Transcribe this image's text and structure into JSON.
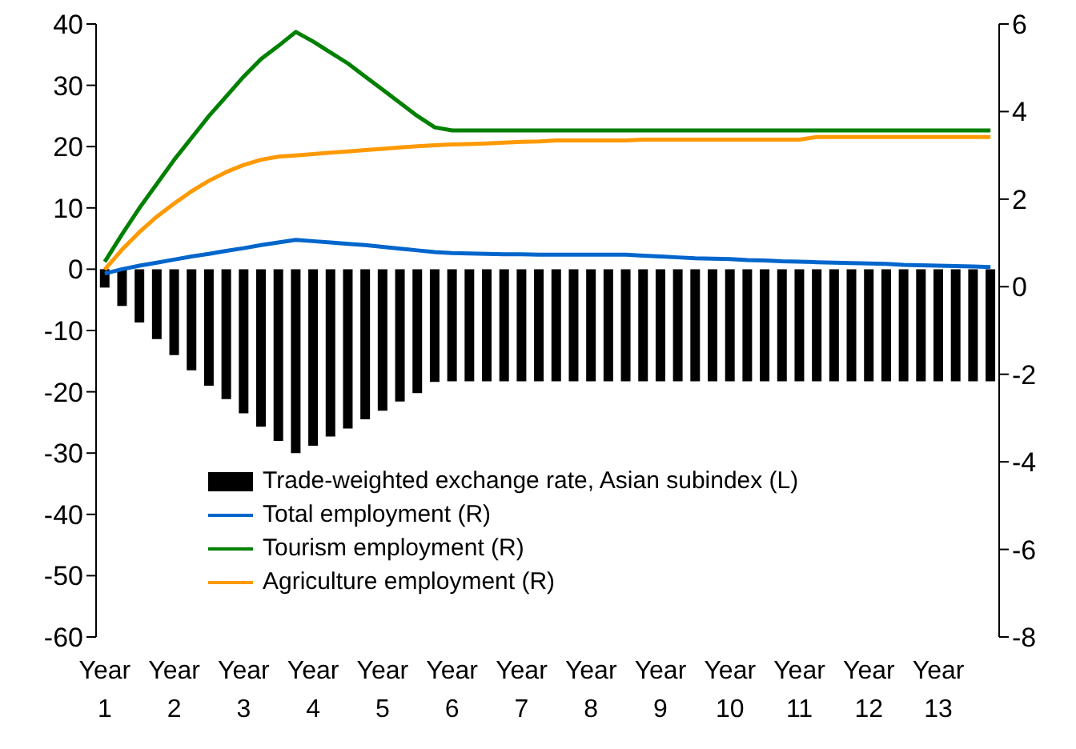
{
  "chart_data": {
    "type": "bar",
    "categories": [
      "Year 1",
      null,
      null,
      null,
      "Year 2",
      null,
      null,
      null,
      "Year 3",
      null,
      null,
      null,
      "Year 4",
      null,
      null,
      null,
      "Year 5",
      null,
      null,
      null,
      "Year 6",
      null,
      null,
      null,
      "Year 7",
      null,
      null,
      null,
      "Year 8",
      null,
      null,
      null,
      "Year 9",
      null,
      null,
      null,
      "Year 10",
      null,
      null,
      null,
      "Year 11",
      null,
      null,
      null,
      "Year 12",
      null,
      null,
      null,
      "Year 13",
      null,
      null,
      null
    ],
    "series": [
      {
        "name": "Trade-weighted exchange rate, Asian subindex (L)",
        "color": "#000000",
        "values": [
          -3,
          -6,
          -8.7,
          -11.4,
          -14,
          -16.5,
          -19,
          -21.2,
          -23.5,
          -25.7,
          -28,
          -30,
          -28.8,
          -27.3,
          -26,
          -24.5,
          -23.1,
          -21.6,
          -20.2,
          -18.4,
          -18.3,
          -18.3,
          -18.3,
          -18.3,
          -18.3,
          -18.3,
          -18.3,
          -18.3,
          -18.3,
          -18.3,
          -18.3,
          -18.3,
          -18.3,
          -18.3,
          -18.3,
          -18.3,
          -18.3,
          -18.3,
          -18.3,
          -18.3,
          -18.3,
          -18.3,
          -18.3,
          -18.3,
          -18.3,
          -18.3,
          -18.3,
          -18.3,
          -18.3,
          -18.3,
          -18.3,
          -18.3
        ]
      },
      {
        "name": "Total employment (R)",
        "type": "line",
        "axis": "y2",
        "color": "#0066cc",
        "values": [
          0.3,
          0.4,
          0.48,
          0.55,
          0.62,
          0.69,
          0.75,
          0.82,
          0.88,
          0.95,
          1.01,
          1.07,
          1.04,
          1.01,
          0.98,
          0.95,
          0.91,
          0.87,
          0.83,
          0.79,
          0.77,
          0.76,
          0.75,
          0.74,
          0.74,
          0.73,
          0.73,
          0.73,
          0.73,
          0.73,
          0.73,
          0.71,
          0.69,
          0.67,
          0.65,
          0.64,
          0.63,
          0.61,
          0.6,
          0.58,
          0.57,
          0.56,
          0.55,
          0.54,
          0.53,
          0.52,
          0.5,
          0.49,
          0.48,
          0.47,
          0.46,
          0.45
        ]
      },
      {
        "name": "Tourism employment (R)",
        "type": "line",
        "axis": "y2",
        "color": "#008000",
        "values": [
          0.57,
          1.2,
          1.8,
          2.35,
          2.9,
          3.4,
          3.9,
          4.35,
          4.8,
          5.2,
          5.5,
          5.82,
          5.6,
          5.35,
          5.1,
          4.8,
          4.5,
          4.2,
          3.9,
          3.64,
          3.57,
          3.57,
          3.57,
          3.57,
          3.57,
          3.57,
          3.57,
          3.57,
          3.57,
          3.57,
          3.57,
          3.57,
          3.57,
          3.57,
          3.57,
          3.57,
          3.57,
          3.57,
          3.57,
          3.57,
          3.57,
          3.57,
          3.57,
          3.57,
          3.57,
          3.57,
          3.57,
          3.57,
          3.57,
          3.57,
          3.57,
          3.57
        ]
      },
      {
        "name": "Agriculture employment (R)",
        "type": "line",
        "axis": "y2",
        "color": "#ff9900",
        "values": [
          0.39,
          0.85,
          1.25,
          1.6,
          1.9,
          2.18,
          2.42,
          2.62,
          2.78,
          2.9,
          2.97,
          3.0,
          3.03,
          3.06,
          3.09,
          3.12,
          3.15,
          3.18,
          3.21,
          3.23,
          3.25,
          3.26,
          3.27,
          3.29,
          3.31,
          3.32,
          3.34,
          3.34,
          3.34,
          3.34,
          3.34,
          3.36,
          3.36,
          3.36,
          3.36,
          3.36,
          3.36,
          3.36,
          3.36,
          3.36,
          3.36,
          3.42,
          3.42,
          3.42,
          3.42,
          3.42,
          3.42,
          3.42,
          3.42,
          3.42,
          3.42,
          3.42
        ]
      }
    ],
    "ylim": [
      -60,
      40
    ],
    "yticks": [
      -60,
      -50,
      -40,
      -30,
      -20,
      -10,
      0,
      10,
      20,
      30,
      40
    ],
    "y2lim": [
      -8,
      6
    ],
    "y2ticks": [
      -8,
      -6,
      -4,
      -2,
      0,
      2,
      4,
      6
    ],
    "legend": "bottom",
    "grid": false
  }
}
